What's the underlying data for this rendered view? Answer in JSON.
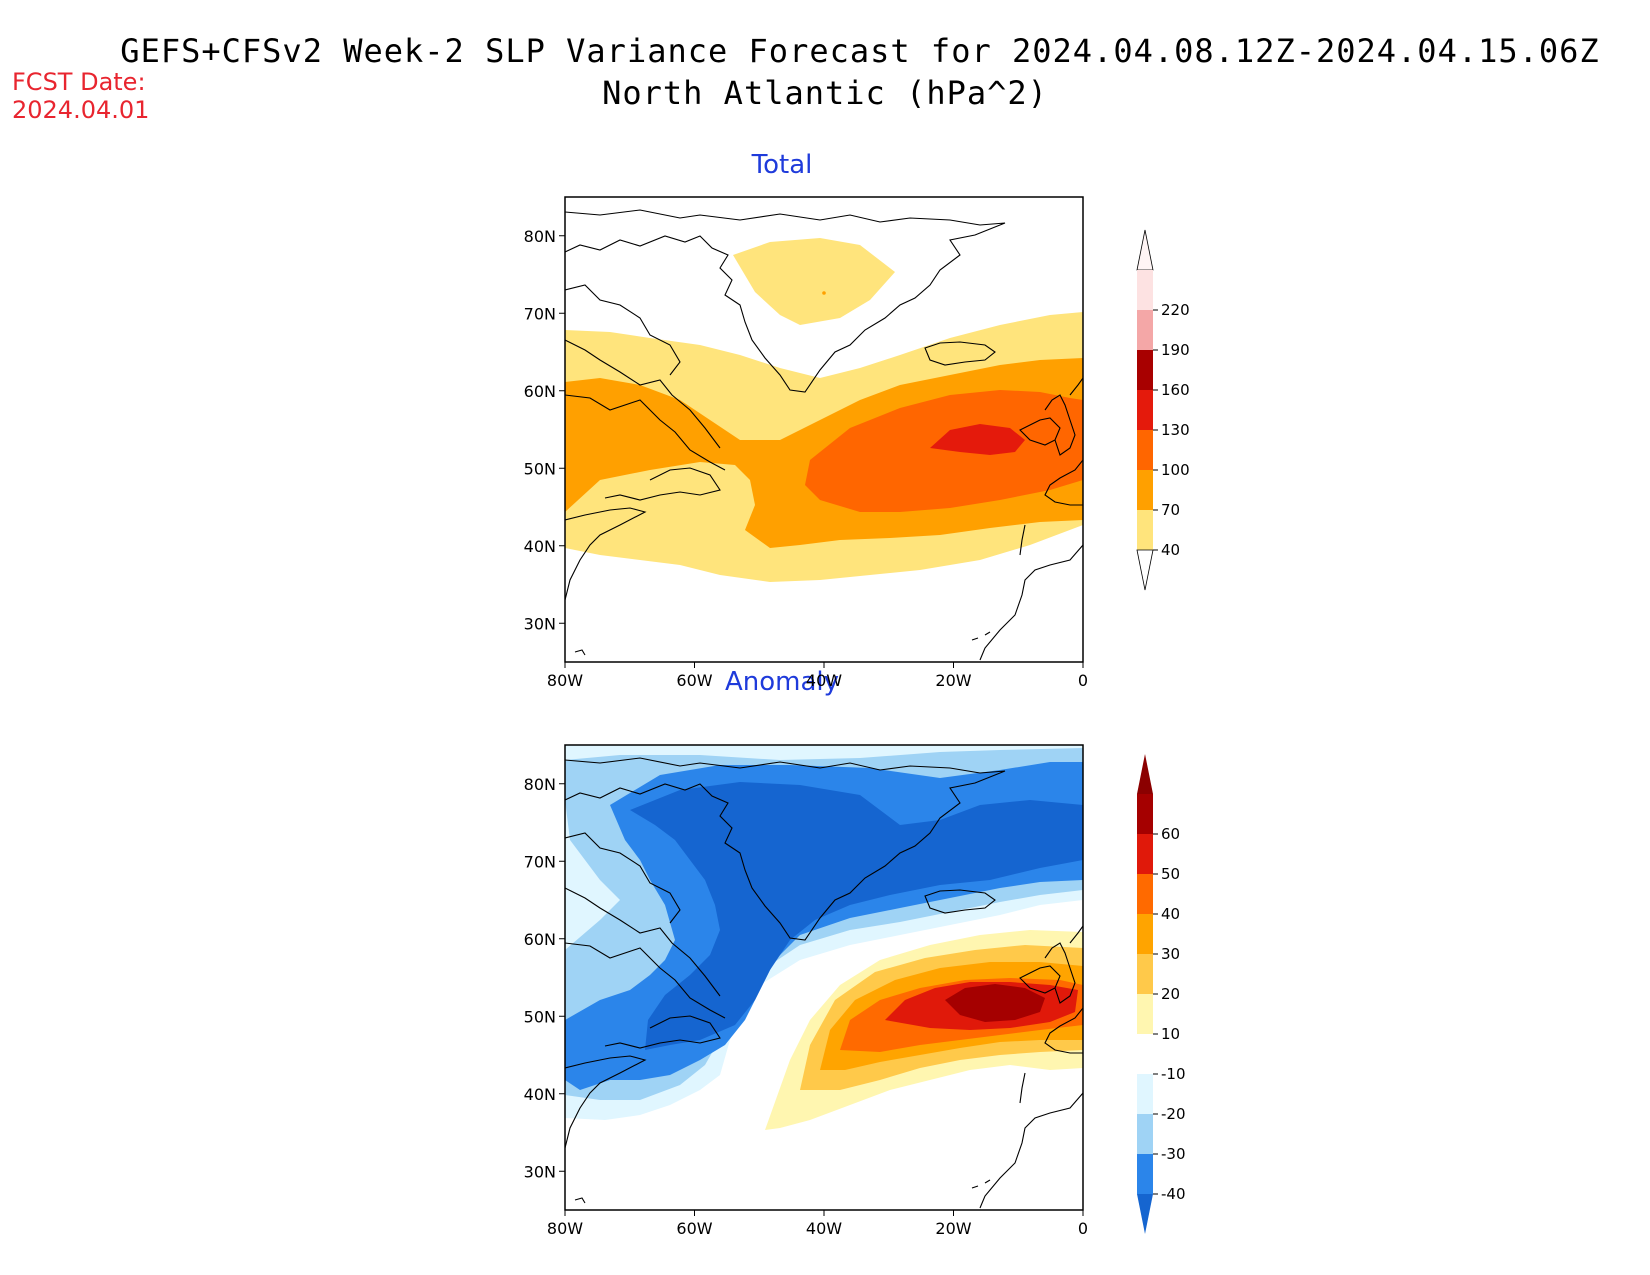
{
  "title": {
    "line1": "GEFS+CFSv2 Week-2 SLP Variance Forecast for 2024.04.08.12Z-2024.04.15.06Z",
    "line2": "North Atlantic (hPa^2)"
  },
  "fcst_date": {
    "label": "FCST Date:",
    "value": "2024.04.01"
  },
  "axes": {
    "lat_labels": [
      "80N",
      "70N",
      "60N",
      "50N",
      "40N",
      "30N"
    ],
    "lon_labels": [
      "80W",
      "60W",
      "40W",
      "20W",
      "0"
    ]
  },
  "panels": [
    {
      "id": "total",
      "title": "Total",
      "colorbar": {
        "labels": [
          "220",
          "190",
          "160",
          "130",
          "100",
          "70",
          "40"
        ],
        "colors": [
          "#fde2e2",
          "#f4a7a7",
          "#a80000",
          "#e41a0c",
          "#ff6600",
          "#ffa000",
          "#ffe47c"
        ]
      }
    },
    {
      "id": "anomaly",
      "title": "Anomaly",
      "colorbar": {
        "labels": [
          "60",
          "50",
          "40",
          "30",
          "20",
          "10",
          "-10",
          "-20",
          "-30",
          "-40"
        ],
        "colors": [
          "#a50000",
          "#e0190a",
          "#ff6a00",
          "#ffa400",
          "#ffc94a",
          "#fff6b0",
          "#ffffff",
          "#e0f6ff",
          "#9fd3f5",
          "#2b85ea",
          "#1565d0"
        ]
      }
    }
  ],
  "chart_data": [
    {
      "type": "heatmap",
      "title": "Total",
      "units": "hPa^2",
      "xlim": [
        -80,
        0
      ],
      "ylim": [
        25,
        85
      ],
      "levels": [
        40,
        70,
        100,
        130,
        160,
        190,
        220
      ],
      "features": [
        {
          "level": 40,
          "description": "band across North Atlantic 40N-70N, plus central Greenland blob"
        },
        {
          "level": 70,
          "description": "from Labrador to western Europe, ~42N-60N"
        },
        {
          "level": 100,
          "description": "~45N-63N from 45W to 0"
        },
        {
          "level": 130,
          "description": "small maximum near 53N 15W"
        }
      ]
    },
    {
      "type": "heatmap",
      "title": "Anomaly",
      "units": "hPa^2",
      "xlim": [
        -80,
        0
      ],
      "ylim": [
        25,
        85
      ],
      "levels": [
        -40,
        -30,
        -20,
        -10,
        10,
        20,
        30,
        40,
        50,
        60
      ],
      "features": [
        {
          "level": -40,
          "description": "negative over Greenland and Labrador Sea"
        },
        {
          "level": 50,
          "description": "positive maximum near 52N 15W west of Ireland"
        }
      ]
    }
  ]
}
